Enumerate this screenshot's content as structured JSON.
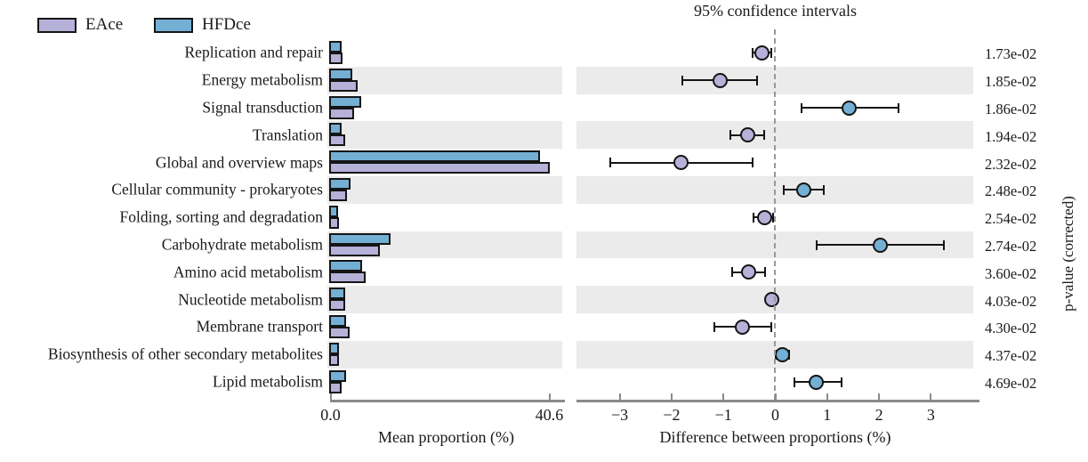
{
  "legend": {
    "series": [
      {
        "label": "EAce",
        "color": "#b5b1d9"
      },
      {
        "label": "HFDce",
        "color": "#74afd4"
      }
    ]
  },
  "chart_data": {
    "type": "bar",
    "subtype": "STAMP extended error bar (grouped horizontal bars + difference CI dot plot)",
    "right_panel_title": "95% confidence intervals",
    "pvalue_axis_label": "p-value (corrected)",
    "categories": [
      "Replication and repair",
      "Energy metabolism",
      "Signal transduction",
      "Translation",
      "Global and overview maps",
      "Cellular community - prokaryotes",
      "Folding, sorting and degradation",
      "Carbohydrate metabolism",
      "Amino acid metabolism",
      "Nucleotide metabolism",
      "Membrane transport",
      "Biosynthesis of other secondary metabolites",
      "Lipid metabolism"
    ],
    "series": [
      {
        "name": "EAce",
        "color": "#b5b1d9",
        "values": [
          2.3,
          5.1,
          4.3,
          2.65,
          40.6,
          3.1,
          1.65,
          9.1,
          6.45,
          2.75,
          3.5,
          1.5,
          2.1
        ]
      },
      {
        "name": "HFDce",
        "color": "#74afd4",
        "values": [
          2.0,
          4.0,
          5.7,
          2.1,
          38.8,
          3.65,
          1.4,
          11.1,
          5.9,
          2.65,
          2.9,
          1.6,
          2.9
        ]
      }
    ],
    "difference": {
      "values": [
        -0.26,
        -1.07,
        1.43,
        -0.54,
        -1.81,
        0.55,
        -0.21,
        2.02,
        -0.52,
        -0.07,
        -0.63,
        0.13,
        0.79
      ],
      "ci_low": [
        -0.44,
        -1.8,
        0.5,
        -0.87,
        -3.18,
        0.16,
        -0.42,
        0.8,
        -0.84,
        -0.16,
        -1.18,
        0.01,
        0.37
      ],
      "ci_high": [
        -0.08,
        -0.36,
        2.38,
        -0.21,
        -0.43,
        0.93,
        -0.04,
        3.25,
        -0.2,
        0.02,
        -0.07,
        0.26,
        1.28
      ],
      "enriched_in": [
        "EAce",
        "EAce",
        "HFDce",
        "EAce",
        "EAce",
        "HFDce",
        "EAce",
        "HFDce",
        "EAce",
        "EAce",
        "EAce",
        "HFDce",
        "HFDce"
      ]
    },
    "p_values": [
      "1.73e-02",
      "1.85e-02",
      "1.86e-02",
      "1.94e-02",
      "2.32e-02",
      "2.48e-02",
      "2.54e-02",
      "2.74e-02",
      "3.60e-02",
      "4.03e-02",
      "4.30e-02",
      "4.37e-02",
      "4.69e-02"
    ],
    "left_axis": {
      "label": "Mean proportion (%)",
      "tick_labels": [
        "0.0",
        "40.6"
      ],
      "tick_values": [
        0,
        40.6
      ],
      "range": [
        0,
        40.6
      ]
    },
    "right_axis": {
      "label": "Difference between proportions (%)",
      "tick_labels": [
        "−3",
        "−2",
        "−1",
        "0",
        "1",
        "2",
        "3"
      ],
      "tick_values": [
        -3,
        -2,
        -1,
        0,
        1,
        2,
        3
      ],
      "zero_line": 0
    },
    "layout_hints": {
      "stripe_color": "#ebebeb",
      "axis_color": "#8a8a8a",
      "zero_line_color": "#999999",
      "outline_color": "#151515",
      "grid": "off",
      "legend_position": "top-left"
    }
  }
}
